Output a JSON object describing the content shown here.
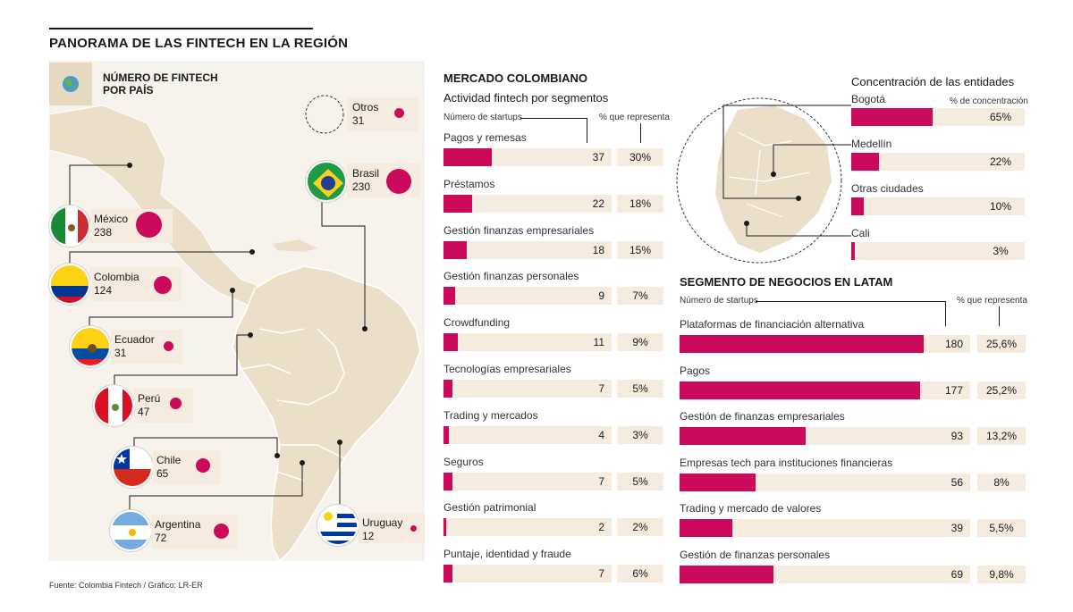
{
  "title": "PANORAMA DE LAS FINTECH EN LA REGIÓN",
  "legend": "NÚMERO DE FINTECH POR PAÍS",
  "source": "Fuente: Colombia Fintech / Gráfico: LR-ER",
  "colors": {
    "accent": "#cc0a5c",
    "panel": "#f5ecdf",
    "land": "#ecdfc9"
  },
  "countries": [
    {
      "name": "México",
      "value": "238"
    },
    {
      "name": "Colombia",
      "value": "124"
    },
    {
      "name": "Ecuador",
      "value": "31"
    },
    {
      "name": "Perú",
      "value": "47"
    },
    {
      "name": "Chile",
      "value": "65"
    },
    {
      "name": "Argentina",
      "value": "72"
    },
    {
      "name": "Uruguay",
      "value": "12"
    },
    {
      "name": "Brasil",
      "value": "230"
    },
    {
      "name": "Otros",
      "value": "31"
    }
  ],
  "colombia": {
    "title": "MERCADO COLOMBIANO",
    "subtitle": "Actividad fintech por segmentos",
    "col_num": "Número de startups",
    "col_pct": "% que representa"
  },
  "concentration": {
    "title": "Concentración de las entidades",
    "col_pct": "% de concentración"
  },
  "latam": {
    "title": "SEGMENTO DE NEGOCIOS EN LATAM",
    "col_num": "Número de startups",
    "col_pct": "% que representa"
  },
  "chart_data": [
    {
      "type": "bar",
      "title": "Actividad fintech por segmentos",
      "categories": [
        "Pagos y remesas",
        "Préstamos",
        "Gestión finanzas empresariales",
        "Gestión finanzas personales",
        "Crowdfunding",
        "Tecnologías empresariales",
        "Trading y mercados",
        "Seguros",
        "Gestión patrimonial",
        "Puntaje, identidad y fraude"
      ],
      "values": [
        37,
        22,
        18,
        9,
        11,
        7,
        4,
        7,
        2,
        7
      ],
      "percent_labels": [
        "30%",
        "18%",
        "15%",
        "7%",
        "9%",
        "5%",
        "3%",
        "5%",
        "2%",
        "6%"
      ],
      "xlim": [
        0,
        128
      ]
    },
    {
      "type": "bar",
      "title": "Concentración de las entidades",
      "categories": [
        "Bogotá",
        "Medellín",
        "Otras ciudades",
        "Cali"
      ],
      "values": [
        65,
        22,
        10,
        3
      ],
      "percent_labels": [
        "65%",
        "22%",
        "10%",
        "3%"
      ],
      "xlim": [
        0,
        100
      ]
    },
    {
      "type": "bar",
      "title": "SEGMENTO DE NEGOCIOS EN LATAM",
      "categories": [
        "Plataformas de financiación alternativa",
        "Pagos",
        "Gestión de finanzas empresariales",
        "Empresas tech para instituciones financieras",
        "Trading y mercado de valores",
        "Gestión de finanzas personales"
      ],
      "values": [
        180,
        177,
        93,
        56,
        39,
        69
      ],
      "percent_labels": [
        "25,6%",
        "25,2%",
        "13,2%",
        "8%",
        "5,5%",
        "9,8%"
      ],
      "xlim": [
        0,
        214
      ]
    }
  ]
}
